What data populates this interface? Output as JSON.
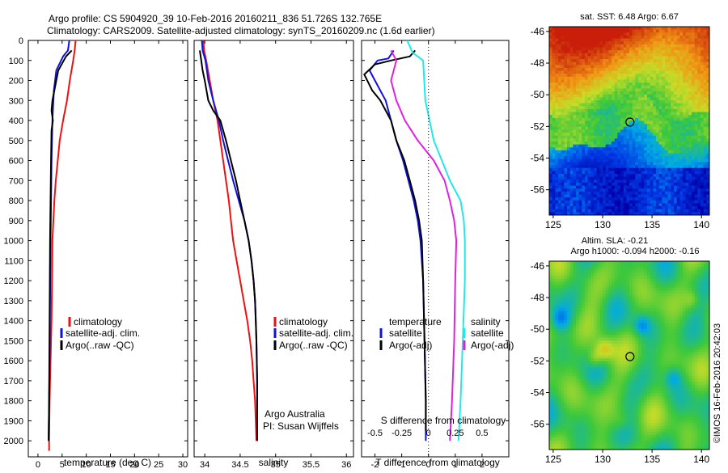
{
  "header": {
    "line1": "Argo profile: CS 5904920_39 10-Feb-2016 20160211_836 51.726S 132.765E",
    "line2": "Climatology: CARS2009. Satellite-adjusted climatology: synTS_20160209.nc (1.6d earlier)"
  },
  "credits": {
    "argo_line1": "Argo Australia",
    "argo_line2": "PI: Susan Wijffels",
    "imos": "©IMOS 16-Feb-2016 20:42:03"
  },
  "colors": {
    "climatology": "#ee1111",
    "satellite": "#1111dd",
    "argo": "#000000",
    "salinity_satellite": "#22e8e8",
    "salinity_argo": "#e020e0"
  },
  "chart_data": [
    {
      "type": "line",
      "name": "temperature-profile",
      "xlabel": "temperature (deg C)",
      "ylabel": "",
      "xlim": [
        -2,
        31
      ],
      "ylim": [
        2080,
        0
      ],
      "xticks": [
        0,
        5,
        10,
        15,
        20,
        25,
        30
      ],
      "yticks": [
        0,
        100,
        200,
        300,
        400,
        500,
        600,
        700,
        800,
        900,
        1000,
        1100,
        1200,
        1300,
        1400,
        1500,
        1600,
        1700,
        1800,
        1900,
        2000
      ],
      "legend": {
        "placement": "middle-right",
        "entries": [
          "climatology",
          "satellite-adj. clim.",
          "Argo(..raw -QC)"
        ]
      },
      "series": [
        {
          "name": "climatology",
          "color": "#ee1111",
          "points": [
            [
              7.8,
              0
            ],
            [
              7.6,
              50
            ],
            [
              7.3,
              100
            ],
            [
              6.6,
              200
            ],
            [
              6.0,
              300
            ],
            [
              5.2,
              400
            ],
            [
              4.5,
              500
            ],
            [
              4.1,
              600
            ],
            [
              3.7,
              700
            ],
            [
              3.4,
              800
            ],
            [
              3.2,
              900
            ],
            [
              3.0,
              1000
            ],
            [
              2.9,
              1200
            ],
            [
              2.8,
              1400
            ],
            [
              2.6,
              1600
            ],
            [
              2.4,
              1800
            ],
            [
              2.3,
              2000
            ],
            [
              2.3,
              2050
            ]
          ]
        },
        {
          "name": "satellite-adj. clim.",
          "color": "#1111dd",
          "points": [
            [
              6.5,
              0
            ],
            [
              6.2,
              50
            ],
            [
              5.2,
              80
            ],
            [
              3.8,
              150
            ],
            [
              3.3,
              250
            ],
            [
              3.0,
              400
            ],
            [
              2.8,
              600
            ],
            [
              2.7,
              800
            ],
            [
              2.6,
              1000
            ],
            [
              2.5,
              1300
            ],
            [
              2.4,
              1600
            ],
            [
              2.3,
              1800
            ],
            [
              2.2,
              2000
            ]
          ]
        },
        {
          "name": "Argo(..raw -QC)",
          "color": "#000000",
          "points": [
            [
              7.0,
              50
            ],
            [
              6.6,
              60
            ],
            [
              5.8,
              80
            ],
            [
              4.2,
              150
            ],
            [
              3.8,
              200
            ],
            [
              3.0,
              300
            ],
            [
              2.8,
              350
            ],
            [
              3.1,
              400
            ],
            [
              2.8,
              450
            ],
            [
              2.7,
              600
            ],
            [
              2.6,
              800
            ],
            [
              2.5,
              1000
            ],
            [
              2.4,
              1400
            ],
            [
              2.3,
              1800
            ],
            [
              2.2,
              2000
            ]
          ]
        }
      ]
    },
    {
      "type": "line",
      "name": "salinity-profile",
      "xlabel": "salinity",
      "xlim": [
        33.85,
        36.1
      ],
      "ylim": [
        2080,
        0
      ],
      "xticks": [
        34,
        34.5,
        35,
        35.5,
        36
      ],
      "legend": {
        "placement": "middle-right",
        "entries": [
          "climatology",
          "satellite-adj. clim.",
          "Argo(..raw -QC)"
        ]
      },
      "series": [
        {
          "name": "climatology",
          "color": "#ee1111",
          "points": [
            [
              33.98,
              0
            ],
            [
              33.99,
              50
            ],
            [
              34.02,
              100
            ],
            [
              34.07,
              200
            ],
            [
              34.12,
              300
            ],
            [
              34.18,
              400
            ],
            [
              34.22,
              500
            ],
            [
              34.26,
              600
            ],
            [
              34.3,
              700
            ],
            [
              34.34,
              800
            ],
            [
              34.37,
              900
            ],
            [
              34.4,
              1000
            ],
            [
              34.45,
              1100
            ],
            [
              34.5,
              1200
            ],
            [
              34.55,
              1300
            ],
            [
              34.6,
              1400
            ],
            [
              34.64,
              1500
            ],
            [
              34.67,
              1600
            ],
            [
              34.69,
              1700
            ],
            [
              34.71,
              1800
            ],
            [
              34.72,
              1900
            ],
            [
              34.73,
              2000
            ]
          ]
        },
        {
          "name": "satellite-adj. clim.",
          "color": "#1111dd",
          "points": [
            [
              33.96,
              0
            ],
            [
              33.97,
              50
            ],
            [
              34.01,
              100
            ],
            [
              34.05,
              200
            ],
            [
              34.12,
              300
            ],
            [
              34.2,
              400
            ],
            [
              34.26,
              500
            ],
            [
              34.33,
              600
            ],
            [
              34.4,
              700
            ],
            [
              34.48,
              800
            ],
            [
              34.56,
              900
            ],
            [
              34.62,
              1000
            ],
            [
              34.66,
              1100
            ],
            [
              34.69,
              1200
            ],
            [
              34.71,
              1300
            ],
            [
              34.72,
              1400
            ],
            [
              34.73,
              1500
            ],
            [
              34.74,
              1700
            ],
            [
              34.74,
              2000
            ]
          ]
        },
        {
          "name": "Argo(..raw -QC)",
          "color": "#000000",
          "points": [
            [
              33.93,
              50
            ],
            [
              33.95,
              100
            ],
            [
              33.97,
              150
            ],
            [
              34.0,
              200
            ],
            [
              34.05,
              300
            ],
            [
              34.12,
              350
            ],
            [
              34.22,
              400
            ],
            [
              34.3,
              500
            ],
            [
              34.37,
              600
            ],
            [
              34.44,
              700
            ],
            [
              34.5,
              800
            ],
            [
              34.56,
              900
            ],
            [
              34.62,
              1000
            ],
            [
              34.66,
              1100
            ],
            [
              34.69,
              1200
            ],
            [
              34.71,
              1300
            ],
            [
              34.72,
              1400
            ],
            [
              34.73,
              1500
            ],
            [
              34.74,
              1700
            ],
            [
              34.74,
              1900
            ],
            [
              34.74,
              2000
            ]
          ]
        }
      ]
    },
    {
      "type": "line",
      "name": "difference-from-climatology",
      "xlabel": "T difference from climatology",
      "x2label": "S difference from climatology",
      "xlim": [
        -2.5,
        3
      ],
      "ylim": [
        2080,
        0
      ],
      "xticks": [
        -2,
        -1,
        0,
        1,
        2
      ],
      "x2ticks": [
        -0.5,
        -0.25,
        0,
        0.25,
        0.5
      ],
      "zero_line": "dotted",
      "legend": {
        "placement": "middle",
        "temperature_title": "temperature",
        "salinity_title": "salinity",
        "temperature_entries": [
          "satellite",
          "Argo(-adj)"
        ],
        "salinity_entries": [
          "satellite",
          "Argo(-adj)"
        ]
      },
      "series": [
        {
          "name": "temperature satellite",
          "color": "#1111dd",
          "points": [
            [
              -1.3,
              50
            ],
            [
              -1.5,
              90
            ],
            [
              -1.9,
              100
            ],
            [
              -2.2,
              150
            ],
            [
              -2.0,
              200
            ],
            [
              -1.6,
              300
            ],
            [
              -1.4,
              400
            ],
            [
              -1.2,
              500
            ],
            [
              -0.95,
              600
            ],
            [
              -0.75,
              700
            ],
            [
              -0.55,
              800
            ],
            [
              -0.4,
              900
            ],
            [
              -0.3,
              1000
            ],
            [
              -0.2,
              1200
            ],
            [
              -0.15,
              1500
            ],
            [
              -0.1,
              1800
            ],
            [
              -0.1,
              2000
            ]
          ]
        },
        {
          "name": "temperature Argo(-adj)",
          "color": "#000000",
          "points": [
            [
              -0.5,
              50
            ],
            [
              -0.7,
              80
            ],
            [
              -1.4,
              100
            ],
            [
              -2.0,
              120
            ],
            [
              -2.4,
              170
            ],
            [
              -2.1,
              250
            ],
            [
              -1.8,
              300
            ],
            [
              -1.4,
              400
            ],
            [
              -1.2,
              500
            ],
            [
              -0.9,
              600
            ],
            [
              -0.7,
              700
            ],
            [
              -0.5,
              800
            ],
            [
              -0.35,
              900
            ],
            [
              -0.25,
              1000
            ],
            [
              -0.2,
              1200
            ],
            [
              -0.15,
              1500
            ],
            [
              -0.1,
              1800
            ],
            [
              -0.1,
              1950
            ]
          ]
        },
        {
          "name": "salinity satellite",
          "color": "#22e8e8",
          "points": [
            [
              -0.2,
              0
            ],
            [
              -0.15,
              60
            ],
            [
              -0.05,
              100
            ],
            [
              -0.03,
              300
            ],
            [
              0.05,
              500
            ],
            [
              0.2,
              700
            ],
            [
              0.3,
              800
            ],
            [
              0.33,
              900
            ],
            [
              0.34,
              1000
            ],
            [
              0.34,
              1200
            ],
            [
              0.32,
              1500
            ],
            [
              0.3,
              1800
            ],
            [
              0.28,
              2000
            ]
          ]
        },
        {
          "name": "salinity Argo(-adj)",
          "color": "#e020e0",
          "points": [
            [
              -0.35,
              50
            ],
            [
              -0.3,
              100
            ],
            [
              -0.35,
              200
            ],
            [
              -0.3,
              300
            ],
            [
              -0.22,
              400
            ],
            [
              -0.1,
              500
            ],
            [
              0.05,
              600
            ],
            [
              0.15,
              700
            ],
            [
              0.2,
              800
            ],
            [
              0.24,
              900
            ],
            [
              0.26,
              1000
            ],
            [
              0.25,
              1200
            ],
            [
              0.24,
              1500
            ],
            [
              0.22,
              1800
            ],
            [
              0.2,
              2000
            ]
          ]
        }
      ]
    },
    {
      "type": "heatmap",
      "name": "sst-map",
      "title": "sat. SST: 6.48 Argo: 6.67",
      "xlim": [
        124.6,
        140.8
      ],
      "ylim": [
        -57.6,
        -45.7
      ],
      "xticks": [
        125,
        130,
        135,
        140
      ],
      "yticks": [
        -46,
        -48,
        -50,
        -52,
        -54,
        -56
      ],
      "marker": {
        "lon": 132.765,
        "lat": -51.726
      }
    },
    {
      "type": "heatmap",
      "name": "sla-map",
      "title_line1": "Altim. SLA: -0.21",
      "title_line2": "Argo h1000: -0.094 h2000: -0.16",
      "xlim": [
        124.6,
        140.8
      ],
      "ylim": [
        -57.6,
        -45.7
      ],
      "xticks": [
        125,
        130,
        135,
        140
      ],
      "yticks": [
        -46,
        -48,
        -50,
        -52,
        -54,
        -56
      ],
      "marker": {
        "lon": 132.765,
        "lat": -51.726
      }
    }
  ]
}
